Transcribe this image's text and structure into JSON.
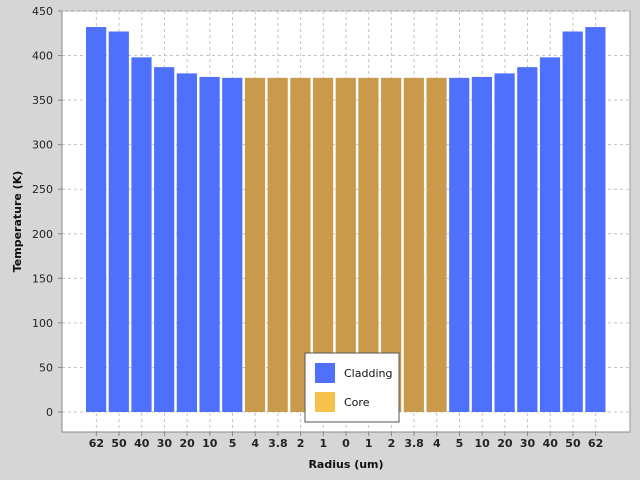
{
  "chart_data": {
    "type": "bar",
    "xlabel": "Radius (um)",
    "ylabel": "Temperature (K)",
    "ylim": [
      0,
      450
    ],
    "yticks": [
      0,
      50,
      100,
      150,
      200,
      250,
      300,
      350,
      400,
      450
    ],
    "grid": true,
    "legend_position": "bottom-center",
    "categories": [
      "62",
      "50",
      "40",
      "30",
      "20",
      "10",
      "5",
      "4",
      "3.8",
      "2",
      "1",
      "0",
      "1",
      "2",
      "3.8",
      "4",
      "5",
      "10",
      "20",
      "30",
      "40",
      "50",
      "62"
    ],
    "values": [
      432,
      427,
      398,
      387,
      380,
      376,
      375,
      375,
      375,
      375,
      375,
      375,
      375,
      375,
      375,
      375,
      375,
      376,
      380,
      387,
      398,
      427,
      432
    ],
    "bar_series": [
      "Cladding",
      "Cladding",
      "Cladding",
      "Cladding",
      "Cladding",
      "Cladding",
      "Cladding",
      "Core",
      "Core",
      "Core",
      "Core",
      "Core",
      "Core",
      "Core",
      "Core",
      "Core",
      "Cladding",
      "Cladding",
      "Cladding",
      "Cladding",
      "Cladding",
      "Cladding",
      "Cladding"
    ],
    "series": [
      {
        "name": "Cladding",
        "color": "#4f70fb"
      },
      {
        "name": "Core",
        "color": "#c99a4c",
        "legend_color": "#f6c24c"
      }
    ]
  }
}
